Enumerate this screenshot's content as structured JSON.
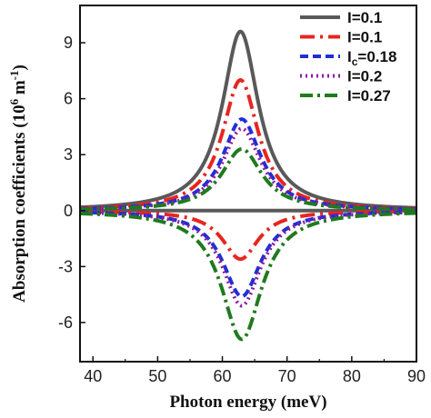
{
  "chart_data": {
    "type": "line",
    "xlabel": "Photon energy (meV)",
    "ylabel_main": "Absorption coefficients (10",
    "ylabel_exp": "6",
    "ylabel_unit": " m",
    "ylabel_unit_exp": "-1",
    "ylabel_close": ")",
    "xlim": [
      38,
      90
    ],
    "ylim": [
      -8.1,
      11.0
    ],
    "xticks": [
      40,
      50,
      60,
      70,
      80,
      90
    ],
    "xtick_labels": [
      "40",
      "50",
      "60",
      "70",
      "80",
      "90"
    ],
    "yticks": [
      -6,
      -3,
      0,
      3,
      6,
      9
    ],
    "ytick_labels": [
      "-6",
      "-3",
      "0",
      "3",
      "6",
      "9"
    ],
    "grid": false,
    "legend_position": "top-right",
    "series": [
      {
        "name": "I=0.1",
        "label_main": "I=0.1",
        "label_sub": "",
        "label_tail": "",
        "color": "#595959",
        "dash": "",
        "width": 4,
        "peak_pos": 9.6,
        "peak_neg": 0.0,
        "center": 62.8,
        "width_meV": 3.4
      },
      {
        "name": "I=0.1",
        "label_main": "I=0.1",
        "label_sub": "",
        "label_tail": "",
        "color": "#e8251f",
        "dash": "16 6 3 6",
        "width": 4,
        "peak_pos": 7.0,
        "peak_neg": -2.6,
        "center": 62.8,
        "width_meV": 3.4
      },
      {
        "name": "Ic=0.18",
        "label_main": "I",
        "label_sub": "c",
        "label_tail": "=0.18",
        "color": "#1f2fd6",
        "dash": "9 5",
        "width": 4,
        "peak_pos": 4.9,
        "peak_neg": -4.6,
        "center": 63.0,
        "width_meV": 3.6
      },
      {
        "name": "I=0.2",
        "label_main": "I=0.2",
        "label_sub": "",
        "label_tail": "",
        "color": "#8a1aa0",
        "dash": "2 4",
        "width": 4,
        "peak_pos": 4.4,
        "peak_neg": -5.1,
        "center": 63.0,
        "width_meV": 3.6
      },
      {
        "name": "I=0.27",
        "label_main": "I=0.27",
        "label_sub": "",
        "label_tail": "",
        "color": "#1f7a1f",
        "dash": "14 5 3 5",
        "width": 4,
        "peak_pos": 3.3,
        "peak_neg": -6.9,
        "center": 63.0,
        "width_meV": 3.8
      }
    ]
  }
}
